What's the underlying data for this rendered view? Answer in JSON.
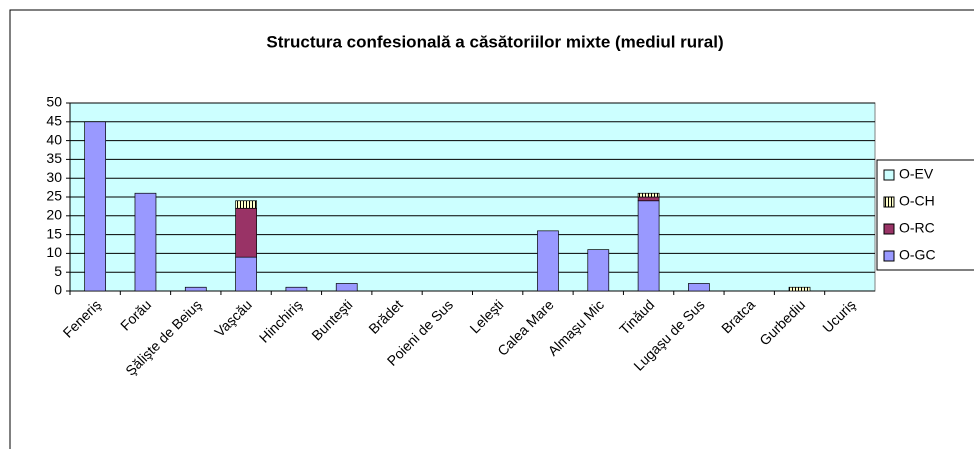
{
  "chart_data": {
    "type": "bar",
    "stacked": true,
    "title": "Structura confesională a căsătoriilor mixte (mediul rural)",
    "categories": [
      "Feneriş",
      "Forău",
      "Şălişte de Beiuş",
      "Vaşcău",
      "Hinchiriş",
      "Bunteşti",
      "Brădet",
      "Poieni de Sus",
      "Leleşti",
      "Calea Mare",
      "Almaşu Mic",
      "Tinăud",
      "Lugaşu de Sus",
      "Bratca",
      "Gurbediu",
      "Ucuriş"
    ],
    "series": [
      {
        "name": "O-GC",
        "color": "#9999ff",
        "values": [
          45,
          26,
          1,
          9,
          1,
          2,
          0,
          0,
          0,
          16,
          11,
          24,
          2,
          0,
          0,
          0
        ]
      },
      {
        "name": "O-RC",
        "color": "#993366",
        "values": [
          0,
          0,
          0,
          13,
          0,
          0,
          0,
          0,
          0,
          0,
          0,
          1,
          0,
          0,
          0,
          0
        ]
      },
      {
        "name": "O-CH",
        "color": "#ffffcc",
        "values": [
          0,
          0,
          0,
          2,
          0,
          0,
          0,
          0,
          0,
          0,
          0,
          1,
          0,
          0,
          1,
          0
        ]
      },
      {
        "name": "O-EV",
        "color": "#ccffff",
        "values": [
          0,
          0,
          0,
          0,
          0,
          0,
          0,
          0,
          0,
          0,
          0,
          0,
          0,
          0,
          0,
          0
        ]
      }
    ],
    "ylim": [
      0,
      50
    ],
    "yticks": [
      0,
      5,
      10,
      15,
      20,
      25,
      30,
      35,
      40,
      45,
      50
    ],
    "grid": true,
    "legend": "right"
  }
}
